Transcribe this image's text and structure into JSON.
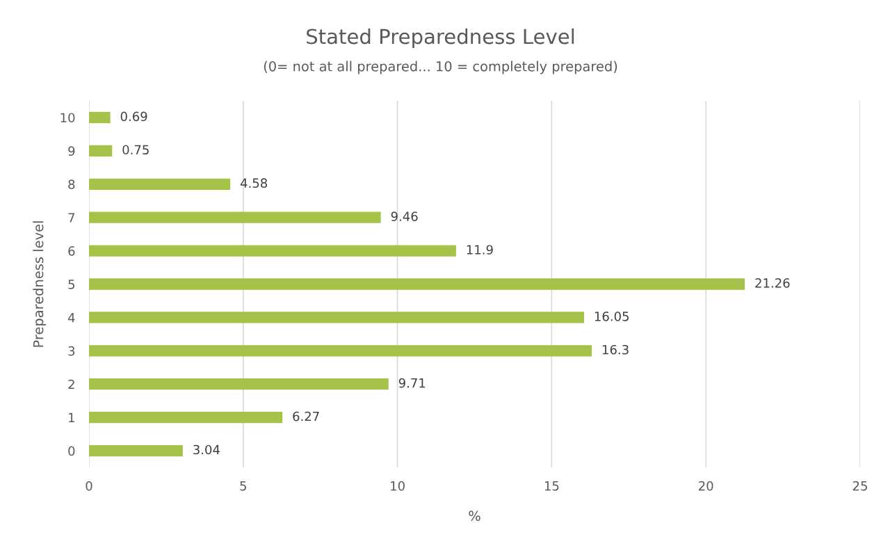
{
  "chart_data": {
    "type": "bar",
    "orientation": "horizontal",
    "title": "Stated Preparedness Level",
    "subtitle": "(0= not at all prepared... 10 = completely prepared)",
    "xlabel": "%",
    "ylabel": "Preparedness level",
    "categories": [
      "10",
      "9",
      "8",
      "7",
      "6",
      "5",
      "4",
      "3",
      "2",
      "1",
      "0"
    ],
    "values": [
      0.69,
      0.75,
      4.58,
      9.46,
      11.9,
      21.26,
      16.05,
      16.3,
      9.71,
      6.27,
      3.04
    ],
    "color": "#a5c249",
    "xlim": [
      0,
      25
    ],
    "xticks": [
      0,
      5,
      10,
      15,
      20,
      25
    ],
    "grid": "x",
    "data_labels": true
  }
}
